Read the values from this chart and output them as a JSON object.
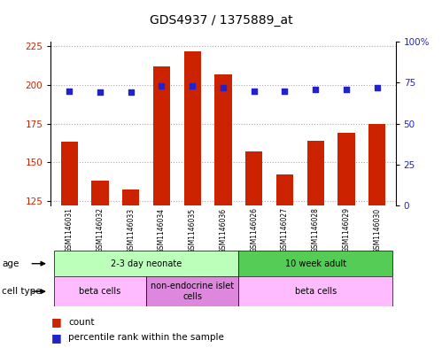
{
  "title": "GDS4937 / 1375889_at",
  "samples": [
    "GSM1146031",
    "GSM1146032",
    "GSM1146033",
    "GSM1146034",
    "GSM1146035",
    "GSM1146036",
    "GSM1146026",
    "GSM1146027",
    "GSM1146028",
    "GSM1146029",
    "GSM1146030"
  ],
  "counts": [
    163,
    138,
    132,
    212,
    222,
    207,
    157,
    142,
    164,
    169,
    175
  ],
  "percentile_ranks": [
    70,
    69,
    69,
    73,
    73,
    72,
    70,
    70,
    71,
    71,
    72
  ],
  "ylim_left": [
    122,
    228
  ],
  "yticks_left": [
    125,
    150,
    175,
    200,
    225
  ],
  "ylim_right": [
    0,
    100
  ],
  "yticks_right": [
    0,
    25,
    50,
    75,
    100
  ],
  "bar_color": "#cc2200",
  "dot_color": "#2222cc",
  "bg_color": "#ffffff",
  "plot_bg": "#ffffff",
  "grid_color": "#aaaaaa",
  "age_groups": [
    {
      "label": "2-3 day neonate",
      "start": 0,
      "end": 6,
      "color": "#bbffbb"
    },
    {
      "label": "10 week adult",
      "start": 6,
      "end": 11,
      "color": "#55cc55"
    }
  ],
  "cell_type_groups": [
    {
      "label": "beta cells",
      "start": 0,
      "end": 3,
      "color": "#ffbbff"
    },
    {
      "label": "non-endocrine islet\ncells",
      "start": 3,
      "end": 6,
      "color": "#dd88dd"
    },
    {
      "label": "beta cells",
      "start": 6,
      "end": 11,
      "color": "#ffbbff"
    }
  ],
  "left_axis_color": "#cc2200",
  "right_axis_color": "#2222cc",
  "title_fontsize": 10,
  "tick_fontsize": 7.5,
  "sample_fontsize": 5.5,
  "annot_fontsize": 7,
  "legend_fontsize": 7.5,
  "row_label_fontsize": 7.5,
  "xtick_bg": "#cccccc",
  "border_color": "#000000"
}
